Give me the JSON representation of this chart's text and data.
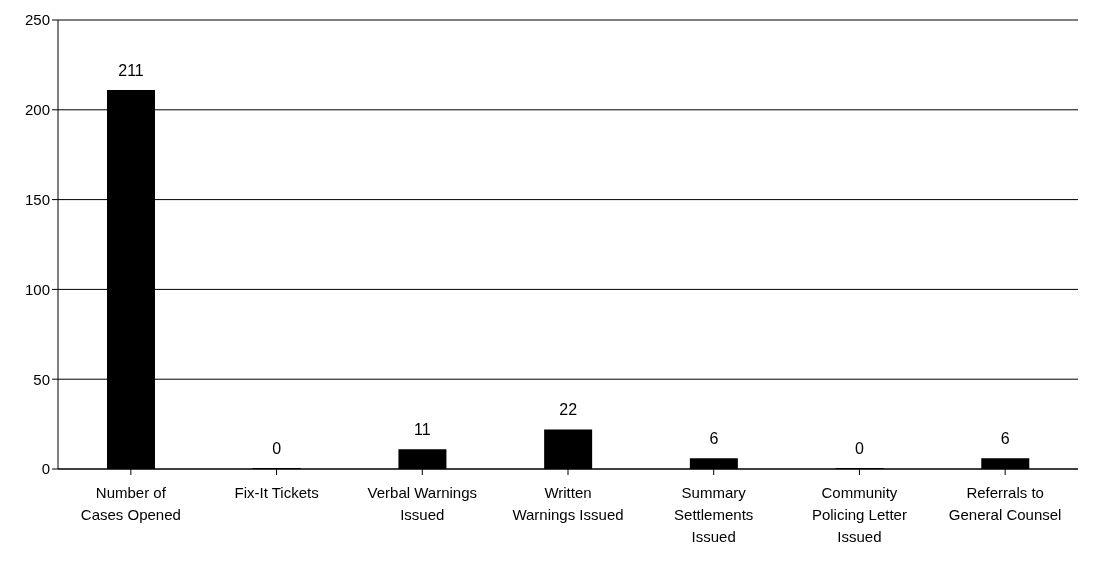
{
  "chart_data": {
    "type": "bar",
    "categories": [
      "Number of Cases Opened",
      "Fix-It Tickets",
      "Verbal Warnings Issued",
      "Written Warnings Issued",
      "Summary Settlements Issued",
      "Community Policing Letter Issued",
      "Referrals to General Counsel"
    ],
    "values": [
      211,
      0,
      11,
      22,
      6,
      0,
      6
    ],
    "color": "#000000",
    "ylim": [
      0,
      250
    ],
    "yticks": [
      0,
      50,
      100,
      150,
      200,
      250
    ],
    "grid": "y",
    "data_labels": true
  }
}
